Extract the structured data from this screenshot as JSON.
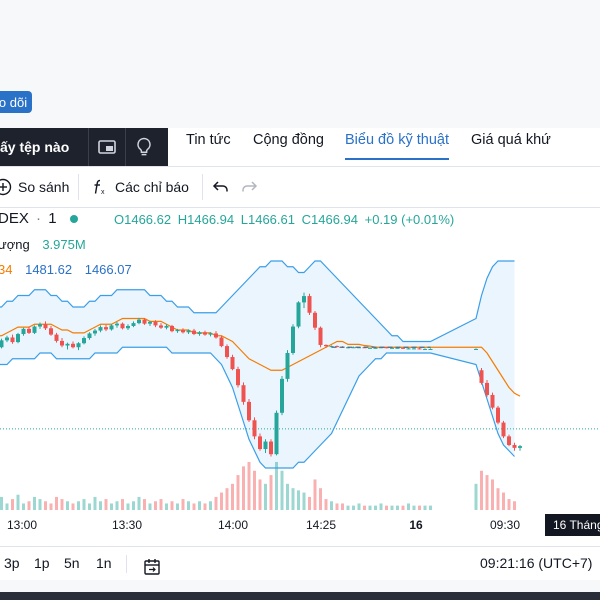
{
  "header": {
    "follow_label": "o dõi"
  },
  "watchlist": {
    "label": "ấy tệp nào"
  },
  "tabs": [
    {
      "label": "Tin tức",
      "active": false
    },
    {
      "label": "Cộng đồng",
      "active": false
    },
    {
      "label": "Biểu đồ kỹ thuật",
      "active": true
    },
    {
      "label": "Giá quá khứ",
      "active": false
    }
  ],
  "toolbar": {
    "compare_label": "So sánh",
    "indicators_label": "Các chỉ báo"
  },
  "legend": {
    "symbol": "DEX",
    "interval": "1",
    "open": "O1466.62",
    "high": "H1466.94",
    "low": "L1466.61",
    "close": "C1466.94",
    "change": "+0.19 (+0.01%)",
    "volume_label": "ượng",
    "volume_value": "3.975M",
    "bb_partial": "34",
    "bb_upper": "1481.62",
    "bb_lower": "1466.07"
  },
  "time_axis": [
    "13:00",
    "13:30",
    "14:00",
    "14:25",
    "16",
    "09:30"
  ],
  "time_axis_badge": "16 Tháng",
  "bottom": {
    "ranges": [
      "3p",
      "1p",
      "5n",
      "1n"
    ],
    "clock": "09:21:16 (UTC+7)"
  },
  "colors": {
    "up": "#26a69a",
    "down": "#ef5350",
    "basis": "#f57c00",
    "band": "#3a9ee8",
    "accent": "#2a71c8"
  },
  "chart_data": {
    "type": "candlestick",
    "price_range": [
      1446,
      1486
    ],
    "candles": [
      [
        1467.2,
        1467.4,
        1466.0,
        1467.0
      ],
      [
        1467.0,
        1468.5,
        1466.8,
        1468.2
      ],
      [
        1468.2,
        1469.0,
        1467.9,
        1468.7
      ],
      [
        1468.7,
        1469.2,
        1467.6,
        1467.9
      ],
      [
        1467.9,
        1469.5,
        1467.7,
        1469.3
      ],
      [
        1469.3,
        1470.4,
        1469.0,
        1470.2
      ],
      [
        1470.2,
        1470.6,
        1469.3,
        1469.5
      ],
      [
        1469.5,
        1470.8,
        1469.3,
        1470.6
      ],
      [
        1470.6,
        1471.3,
        1470.2,
        1471.0
      ],
      [
        1471.0,
        1471.5,
        1470.0,
        1470.3
      ],
      [
        1470.3,
        1470.7,
        1469.0,
        1469.2
      ],
      [
        1469.2,
        1469.5,
        1467.8,
        1468.1
      ],
      [
        1468.1,
        1468.6,
        1467.0,
        1467.3
      ],
      [
        1467.3,
        1467.8,
        1466.6,
        1467.6
      ],
      [
        1467.6,
        1468.0,
        1466.8,
        1467.0
      ],
      [
        1467.0,
        1467.9,
        1466.5,
        1467.7
      ],
      [
        1467.7,
        1468.9,
        1467.5,
        1468.6
      ],
      [
        1468.6,
        1469.6,
        1468.3,
        1469.4
      ],
      [
        1469.4,
        1470.2,
        1469.0,
        1469.9
      ],
      [
        1469.9,
        1470.8,
        1469.6,
        1470.5
      ],
      [
        1470.5,
        1470.9,
        1469.8,
        1470.1
      ],
      [
        1470.1,
        1471.0,
        1469.9,
        1470.8
      ],
      [
        1470.8,
        1471.4,
        1470.4,
        1471.1
      ],
      [
        1471.1,
        1471.3,
        1470.1,
        1470.3
      ],
      [
        1470.3,
        1471.0,
        1470.0,
        1470.7
      ],
      [
        1470.7,
        1471.5,
        1470.5,
        1471.2
      ],
      [
        1471.2,
        1472.1,
        1471.0,
        1471.8
      ],
      [
        1471.8,
        1472.0,
        1470.9,
        1471.1
      ],
      [
        1471.1,
        1471.6,
        1470.7,
        1471.4
      ],
      [
        1471.4,
        1471.7,
        1470.5,
        1470.8
      ],
      [
        1470.8,
        1471.2,
        1470.2,
        1470.4
      ],
      [
        1470.4,
        1471.0,
        1470.1,
        1470.7
      ],
      [
        1470.7,
        1470.9,
        1469.6,
        1469.8
      ],
      [
        1469.8,
        1470.2,
        1469.5,
        1470.0
      ],
      [
        1470.0,
        1470.3,
        1469.4,
        1469.6
      ],
      [
        1469.6,
        1470.1,
        1469.3,
        1469.9
      ],
      [
        1469.9,
        1470.2,
        1469.1,
        1469.3
      ],
      [
        1469.3,
        1469.8,
        1469.0,
        1469.6
      ],
      [
        1469.6,
        1469.9,
        1469.0,
        1469.2
      ],
      [
        1469.2,
        1469.6,
        1468.9,
        1469.4
      ],
      [
        1469.4,
        1469.8,
        1468.5,
        1468.7
      ],
      [
        1468.7,
        1469.0,
        1467.0,
        1467.2
      ],
      [
        1467.2,
        1467.5,
        1465.0,
        1465.3
      ],
      [
        1465.3,
        1465.7,
        1463.0,
        1463.2
      ],
      [
        1463.2,
        1463.6,
        1460.0,
        1460.4
      ],
      [
        1460.4,
        1460.9,
        1457.0,
        1457.5
      ],
      [
        1457.5,
        1458.0,
        1454.0,
        1454.3
      ],
      [
        1454.3,
        1454.8,
        1451.0,
        1451.5
      ],
      [
        1451.5,
        1452.0,
        1449.0,
        1449.3
      ],
      [
        1449.3,
        1451.0,
        1448.6,
        1450.6
      ],
      [
        1450.6,
        1451.0,
        1448.0,
        1448.4
      ],
      [
        1448.4,
        1456.0,
        1448.2,
        1455.6
      ],
      [
        1455.6,
        1462.0,
        1455.2,
        1461.5
      ],
      [
        1461.5,
        1466.5,
        1461.0,
        1466.0
      ],
      [
        1466.0,
        1471.0,
        1465.7,
        1470.6
      ],
      [
        1470.6,
        1475.0,
        1470.3,
        1474.8
      ],
      [
        1474.8,
        1476.5,
        1473.8,
        1475.9
      ],
      [
        1475.9,
        1476.3,
        1472.6,
        1473.0
      ],
      [
        1473.0,
        1473.3,
        1470.0,
        1470.4
      ],
      [
        1470.4,
        1470.6,
        1467.0,
        1467.4
      ],
      [
        1467.4,
        1467.5,
        1466.9,
        1467.2
      ],
      [
        1467.2,
        1467.3,
        1467.0,
        1467.2
      ],
      [
        1467.2,
        1467.3,
        1467.0,
        1467.1
      ],
      [
        1467.1,
        1467.2,
        1466.9,
        1467.0
      ],
      [
        1467.0,
        1467.1,
        1466.8,
        1467.0
      ],
      [
        1467.0,
        1467.1,
        1466.9,
        1467.0
      ],
      [
        1467.0,
        1467.0,
        1466.9,
        1467.0
      ],
      [
        1467.0,
        1467.1,
        1466.9,
        1466.9
      ],
      [
        1466.9,
        1467.0,
        1466.8,
        1466.9
      ],
      [
        1466.9,
        1467.0,
        1466.8,
        1466.9
      ],
      [
        1466.9,
        1467.0,
        1466.9,
        1467.0
      ],
      [
        1467.0,
        1467.0,
        1466.8,
        1466.9
      ],
      [
        1466.9,
        1467.0,
        1466.8,
        1466.9
      ],
      [
        1466.9,
        1467.0,
        1466.8,
        1466.9
      ],
      [
        1466.9,
        1466.9,
        1466.7,
        1466.8
      ],
      [
        1466.8,
        1466.9,
        1466.7,
        1466.8
      ],
      [
        1466.8,
        1466.9,
        1466.7,
        1466.8
      ],
      [
        1466.8,
        1466.9,
        1466.6,
        1466.7
      ],
      [
        1466.7,
        1466.8,
        1466.6,
        1466.7
      ],
      [
        1466.7,
        1466.8,
        1466.6,
        1466.7
      ],
      [
        1466.7,
        1466.8,
        1466.6,
        1466.7
      ],
      [
        1463.0,
        1463.4,
        1460.5,
        1460.8
      ],
      [
        1460.8,
        1461.3,
        1458.4,
        1458.7
      ],
      [
        1458.7,
        1459.1,
        1456.2,
        1456.5
      ],
      [
        1456.5,
        1456.8,
        1453.6,
        1453.9
      ],
      [
        1453.9,
        1454.2,
        1451.2,
        1451.5
      ],
      [
        1451.5,
        1451.8,
        1449.8,
        1450.0
      ],
      [
        1450.0,
        1450.4,
        1449.0,
        1449.5
      ],
      [
        1449.5,
        1450.0,
        1449.0,
        1449.8
      ]
    ],
    "volume": [
      4,
      6,
      3,
      5,
      7,
      3,
      4,
      6,
      5,
      4,
      3,
      6,
      5,
      4,
      3,
      4,
      5,
      3,
      6,
      4,
      5,
      3,
      4,
      5,
      3,
      4,
      6,
      5,
      3,
      4,
      5,
      3,
      4,
      3,
      5,
      4,
      3,
      4,
      3,
      4,
      6,
      8,
      10,
      12,
      16,
      20,
      22,
      18,
      14,
      12,
      16,
      22,
      18,
      12,
      10,
      9,
      8,
      6,
      14,
      10,
      5,
      4,
      3,
      3,
      2,
      2,
      3,
      2,
      2,
      2,
      3,
      2,
      2,
      2,
      2,
      3,
      2,
      2,
      2,
      2,
      12,
      18,
      16,
      14,
      10,
      8,
      5,
      4
    ],
    "bb_upper": [
      1474,
      1474,
      1475,
      1475,
      1476,
      1476,
      1476,
      1477,
      1477,
      1477,
      1476,
      1476,
      1475,
      1475,
      1474,
      1474,
      1474,
      1475,
      1475,
      1476,
      1476,
      1476,
      1477,
      1477,
      1477,
      1477,
      1477,
      1477,
      1476,
      1476,
      1476,
      1475,
      1475,
      1474,
      1474,
      1474,
      1473,
      1473,
      1473,
      1473,
      1473,
      1474,
      1475,
      1476,
      1477,
      1478,
      1479,
      1480,
      1481,
      1481,
      1482,
      1482,
      1482,
      1481,
      1481,
      1480,
      1480,
      1481,
      1482,
      1482,
      1481,
      1480,
      1479,
      1478,
      1477,
      1476,
      1475,
      1474,
      1473,
      1472,
      1471,
      1470,
      1469,
      1469,
      1468,
      1468,
      1468,
      1468,
      1468,
      1468,
      1472,
      1476,
      1479,
      1481,
      1482,
      1482,
      1482,
      1482
    ],
    "bb_lower": [
      1464,
      1464,
      1464,
      1465,
      1465,
      1465,
      1465,
      1465,
      1466,
      1466,
      1466,
      1465,
      1465,
      1465,
      1465,
      1465,
      1465,
      1465,
      1466,
      1466,
      1466,
      1466,
      1466,
      1467,
      1467,
      1467,
      1467,
      1467,
      1467,
      1467,
      1467,
      1467,
      1466,
      1466,
      1466,
      1466,
      1466,
      1466,
      1466,
      1466,
      1465,
      1464,
      1462,
      1460,
      1457,
      1454,
      1451,
      1449,
      1447,
      1446,
      1446,
      1446,
      1446,
      1446,
      1446,
      1447,
      1447,
      1448,
      1449,
      1450,
      1451,
      1452,
      1454,
      1456,
      1458,
      1460,
      1462,
      1463,
      1464,
      1465,
      1465,
      1466,
      1466,
      1466,
      1466,
      1466,
      1466,
      1466,
      1466,
      1466,
      1464,
      1461,
      1458,
      1455,
      1452,
      1450,
      1449,
      1448
    ],
    "bb_basis": [
      1469,
      1469,
      1469.5,
      1470,
      1470.5,
      1470.5,
      1470.5,
      1471,
      1471,
      1471,
      1471,
      1470.5,
      1470,
      1470,
      1469.5,
      1469.5,
      1469.5,
      1470,
      1470.5,
      1471,
      1471,
      1471,
      1471.5,
      1472,
      1472,
      1472,
      1472,
      1472,
      1471.5,
      1471.5,
      1471.5,
      1471,
      1470.5,
      1470,
      1470,
      1470,
      1469.5,
      1469.5,
      1469.5,
      1469.5,
      1469,
      1469,
      1468.5,
      1468,
      1467,
      1466,
      1465,
      1464.5,
      1464,
      1463.5,
      1463,
      1463,
      1463,
      1463.5,
      1464,
      1464.5,
      1465,
      1465.5,
      1466,
      1466.5,
      1467,
      1467.5,
      1468,
      1468,
      1467.5,
      1467.5,
      1467.5,
      1467.3,
      1467.2,
      1467,
      1467,
      1467,
      1467,
      1467,
      1467,
      1467,
      1467,
      1467,
      1467,
      1467,
      1467,
      1467,
      1466,
      1464.5,
      1463,
      1461.5,
      1460,
      1459,
      1458.5
    ],
    "last_price_line": 1452.8,
    "dashed_level": 1467.0,
    "x_ticks": [
      "13:00",
      "13:30",
      "14:00",
      "14:25",
      "16",
      "09:30"
    ]
  }
}
